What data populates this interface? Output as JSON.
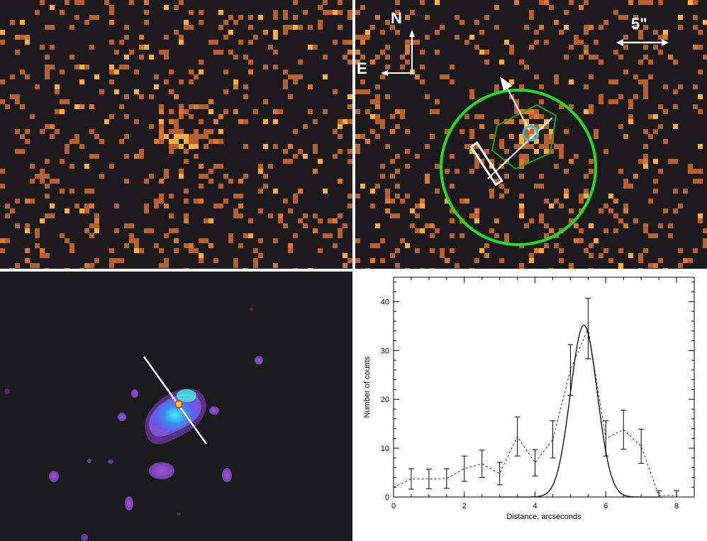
{
  "figure": {
    "panel_top_left": {
      "description_name": "xray-counts-image"
    },
    "panel_top_right": {
      "compass": {
        "north_label": "N",
        "east_label": "E"
      },
      "scale_bar_label": "5\"",
      "colors": {
        "circle": "#22dd22",
        "contour": "#1fa51f",
        "marker": "#33bbee",
        "overlay": "#ffffff"
      }
    },
    "panel_bottom_left": {
      "description_name": "smoothed-image"
    },
    "colors": {
      "pixel_dim": "#b9602f",
      "pixel_mid": "#d9782c",
      "pixel_bright": "#ffae3a",
      "background": "#1c1a1c"
    }
  },
  "chart_data": {
    "type": "line",
    "xlabel": "Distance, arcseconds",
    "ylabel": "Number of counts",
    "xlim": [
      0,
      8.5
    ],
    "ylim": [
      0,
      45
    ],
    "xticks": [
      0,
      2,
      4,
      6,
      8
    ],
    "yticks": [
      0,
      10,
      20,
      30,
      40
    ],
    "series": [
      {
        "style": "dashed",
        "x": [
          0.0,
          0.5,
          1.0,
          1.5,
          2.0,
          2.5,
          3.0,
          3.5,
          4.0,
          4.5,
          5.0,
          5.5,
          6.0,
          6.5,
          7.0,
          7.5,
          8.0
        ],
        "y": [
          2.0,
          3.7,
          3.7,
          3.8,
          5.8,
          6.8,
          4.8,
          12.4,
          7.0,
          11.8,
          26.0,
          34.5,
          12.0,
          13.8,
          10.4,
          0.3,
          0.3
        ],
        "yerr": [
          0,
          2.1,
          2.0,
          2.0,
          2.6,
          2.8,
          2.3,
          4.0,
          2.7,
          3.8,
          5.2,
          6.2,
          3.6,
          4.0,
          3.5,
          1.0,
          1.0
        ]
      },
      {
        "style": "solid",
        "model": "gaussian",
        "peak": 35.2,
        "center": 5.38,
        "sigma": 0.38
      }
    ]
  }
}
